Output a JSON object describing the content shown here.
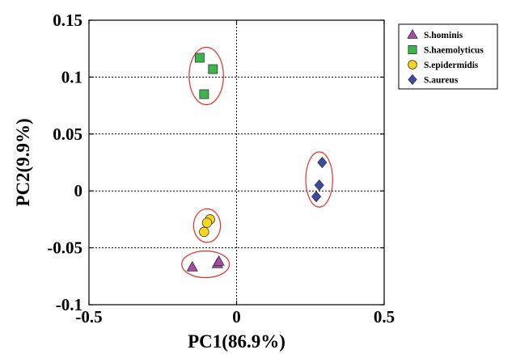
{
  "chart_data": {
    "type": "scatter",
    "xlabel": "PC1(86.9%)",
    "ylabel": "PC2(9.9%)",
    "xlim": [
      -0.5,
      0.5
    ],
    "ylim": [
      -0.1,
      0.15
    ],
    "x_ticks": [
      -0.5,
      0,
      0.5
    ],
    "x_tick_labels": [
      "-0.5",
      "0",
      "0.5"
    ],
    "y_ticks": [
      -0.1,
      -0.05,
      0,
      0.05,
      0.1,
      0.15
    ],
    "y_tick_labels": [
      "-0.1",
      "-0.05",
      "0",
      "0.05",
      "0.1",
      "0.15"
    ],
    "grid": "dotted lines at every y tick and at x = 0",
    "legend_position": "outside right, top",
    "series": [
      {
        "name": "S.hominis",
        "marker": "triangle",
        "color": "#a64ca6",
        "points": [
          [
            -0.15,
            -0.067
          ],
          [
            -0.065,
            -0.064
          ],
          [
            -0.06,
            -0.062
          ]
        ]
      },
      {
        "name": "S.haemolyticus",
        "marker": "square",
        "color": "#3cb54a",
        "points": [
          [
            -0.125,
            0.117
          ],
          [
            -0.08,
            0.107
          ],
          [
            -0.11,
            0.085
          ]
        ]
      },
      {
        "name": "S.epidermidis",
        "marker": "circle",
        "color": "#f7d61b",
        "points": [
          [
            -0.09,
            -0.025
          ],
          [
            -0.1,
            -0.028
          ],
          [
            -0.11,
            -0.036
          ]
        ]
      },
      {
        "name": "S.aureus",
        "marker": "diamond",
        "color": "#3d4aa3",
        "points": [
          [
            0.29,
            0.025
          ],
          [
            0.28,
            0.005
          ],
          [
            0.27,
            -0.005
          ]
        ]
      }
    ],
    "cluster_ellipses": {
      "color": "#e0302b",
      "note": "one red ellipse drawn around each species cluster"
    }
  }
}
